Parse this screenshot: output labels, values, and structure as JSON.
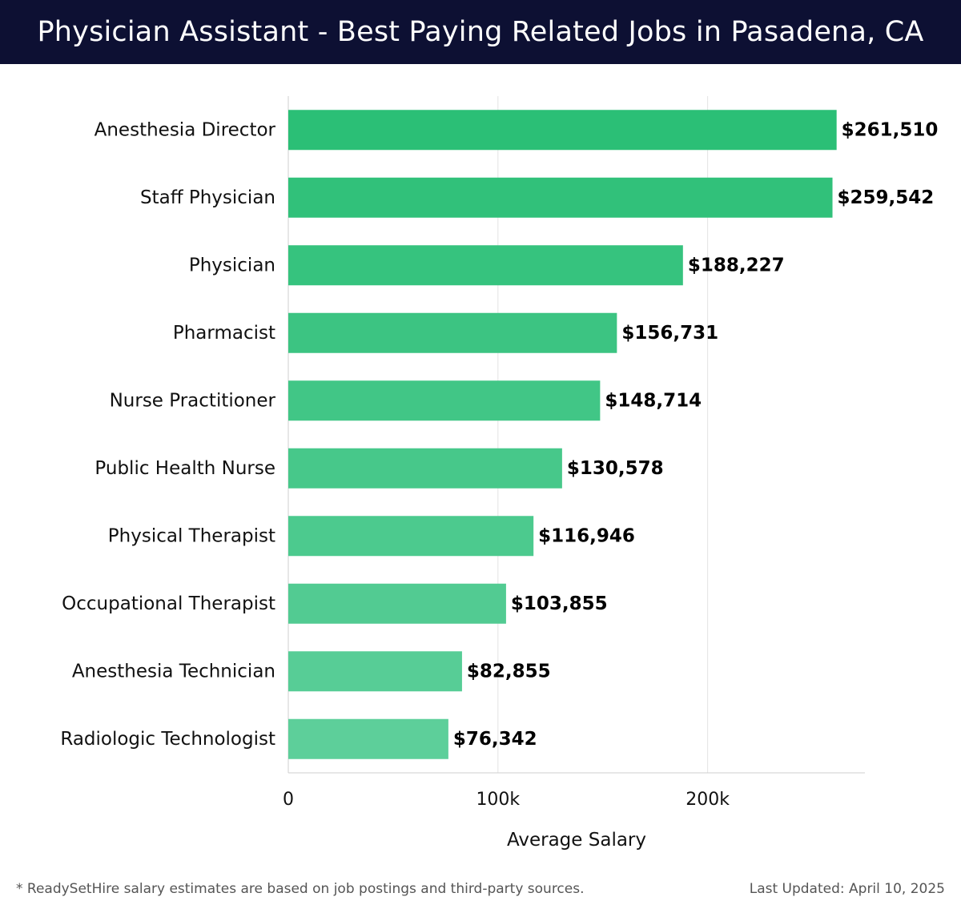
{
  "header": {
    "title": "Physician Assistant - Best Paying Related Jobs in Pasadena, CA"
  },
  "footer": {
    "note": "* ReadySetHire salary estimates are based on job postings and third-party sources.",
    "updated": "Last Updated: April 10, 2025"
  },
  "colors": {
    "header_bg": "#0d1033",
    "bar_top": "#2bbf76",
    "bar_bottom": "#5dcf9a",
    "grid": "#e3e3e3"
  },
  "chart_data": {
    "type": "bar",
    "orientation": "horizontal",
    "categories": [
      "Anesthesia Director",
      "Staff Physician",
      "Physician",
      "Pharmacist",
      "Nurse Practitioner",
      "Public Health Nurse",
      "Physical Therapist",
      "Occupational Therapist",
      "Anesthesia Technician",
      "Radiologic Technologist"
    ],
    "values": [
      261510,
      259542,
      188227,
      156731,
      148714,
      130578,
      116946,
      103855,
      82855,
      76342
    ],
    "value_labels": [
      "$261,510",
      "$259,542",
      "$188,227",
      "$156,731",
      "$148,714",
      "$130,578",
      "$116,946",
      "$103,855",
      "$82,855",
      "$76,342"
    ],
    "xlabel": "Average Salary",
    "ylabel": "",
    "xlim": [
      0,
      275000
    ],
    "xticks": [
      0,
      100000,
      200000
    ],
    "xtick_labels": [
      "0",
      "100k",
      "200k"
    ],
    "grid": true
  }
}
